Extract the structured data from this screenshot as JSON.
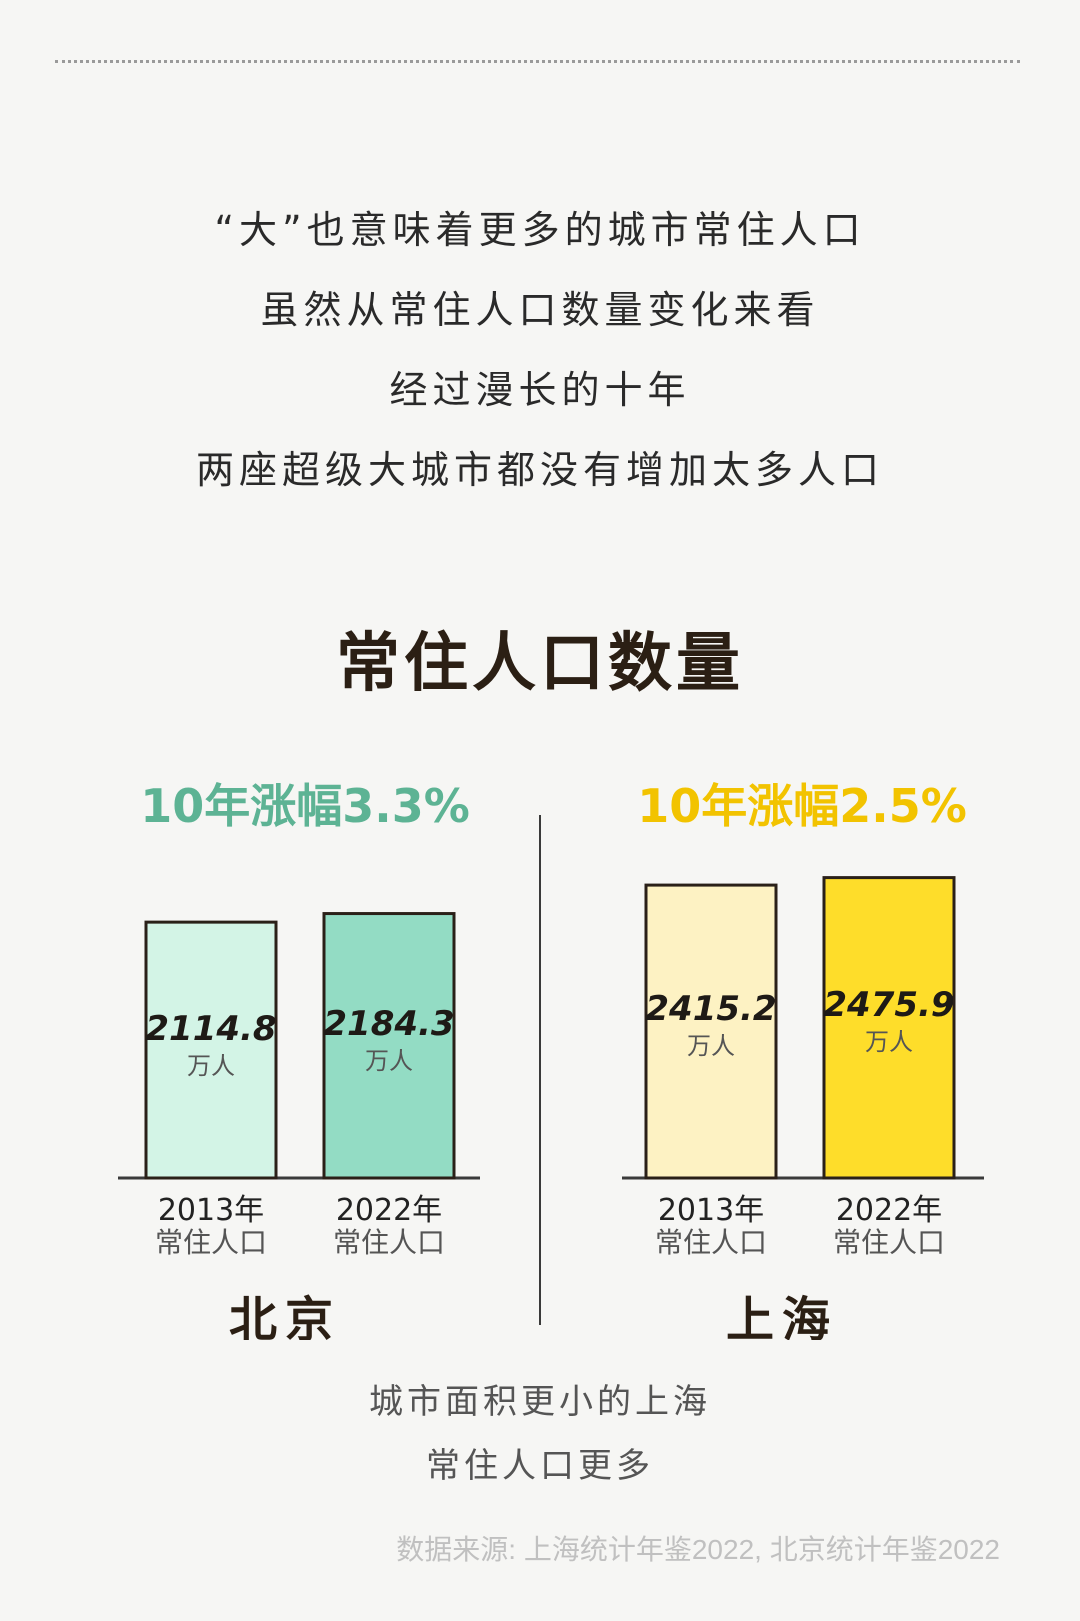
{
  "intro": [
    "“大”也意味着更多的城市常住人口",
    "虽然从常住人口数量变化来看",
    "经过漫长的十年",
    "两座超级大城市都没有增加太多人口"
  ],
  "colors": {
    "beijing_accent": "#5db394",
    "shanghai_accent": "#f2c300",
    "beijing_2013": "#d3f4e6",
    "beijing_2022": "#93dcc4",
    "shanghai_2013": "#fdf2c3",
    "shanghai_2022": "#fedd2a"
  },
  "chart_data": {
    "type": "bar",
    "title": "常住人口数量",
    "unit": "万人",
    "ylim": [
      0,
      2500
    ],
    "panels": [
      {
        "city": "北京",
        "growth_label": "10年涨幅3.3%",
        "bars": [
          {
            "year_label": "2013年",
            "sub_label": "常住人口",
            "value": 2114.8,
            "value_label": "2114.8"
          },
          {
            "year_label": "2022年",
            "sub_label": "常住人口",
            "value": 2184.3,
            "value_label": "2184.3"
          }
        ]
      },
      {
        "city": "上海",
        "growth_label": "10年涨幅2.5%",
        "bars": [
          {
            "year_label": "2013年",
            "sub_label": "常住人口",
            "value": 2415.2,
            "value_label": "2415.2"
          },
          {
            "year_label": "2022年",
            "sub_label": "常住人口",
            "value": 2475.9,
            "value_label": "2475.9"
          }
        ]
      }
    ]
  },
  "footer": [
    "城市面积更小的上海",
    "常住人口更多"
  ],
  "source": "数据来源: 上海统计年鉴2022, 北京统计年鉴2022"
}
